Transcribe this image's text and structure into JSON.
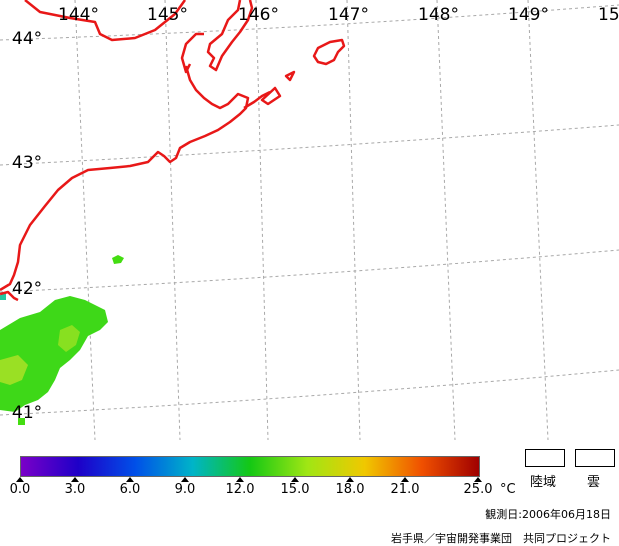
{
  "map": {
    "longitude_labels": [
      "144°",
      "145°",
      "146°",
      "147°",
      "148°",
      "149°",
      "15"
    ],
    "latitude_labels": [
      "44°",
      "43°",
      "42°",
      "41°"
    ],
    "coastline_color": "#e81818",
    "graticule_color": "#a8a8a8",
    "sst_patch_color": "#44dd11"
  },
  "colorbar": {
    "tick_labels": [
      "0.0",
      "3.0",
      "6.0",
      "9.0",
      "12.0",
      "15.0",
      "18.0",
      "21.0",
      "25.0"
    ],
    "unit": "°C",
    "gradient_colors": [
      "#7a00c8",
      "#1e00c8",
      "#0050e8",
      "#00b4c8",
      "#14c814",
      "#a0e614",
      "#f0c800",
      "#f05000",
      "#a00000"
    ]
  },
  "legend": {
    "land_label": "陸域",
    "cloud_label": "雲"
  },
  "observation_date": "観測日:2006年06月18日",
  "credit": "岩手県／宇宙開発事業団　共同プロジェクト"
}
